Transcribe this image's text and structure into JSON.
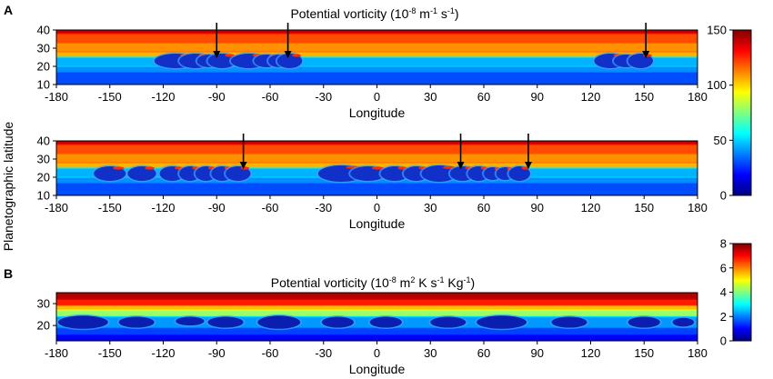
{
  "panel_a": {
    "letter": "A",
    "title_main": "Potential vorticity (10",
    "title_exp1": "-8",
    "title_mid": " m",
    "title_exp2": "-1",
    "title_mid2": " s",
    "title_exp3": "-1",
    "title_end": ")"
  },
  "panel_b": {
    "letter": "B",
    "title_main": "Potential vorticity (10",
    "title_exp1": "-8",
    "title_mid": " m",
    "title_exp2": "2",
    "title_mid2": " K s",
    "title_exp3": "-1",
    "title_end": " Kg",
    "title_exp4": "-1",
    "title_end2": ")"
  },
  "shared_ylabel": "Planetographic latitude",
  "chart_data": [
    {
      "type": "heatmap",
      "panel": "A (upper)",
      "title": "Potential vorticity (10^-8 m^-1 s^-1)",
      "xlabel": "Longitude",
      "ylabel": "Planetographic latitude",
      "xlim": [
        -180,
        180
      ],
      "ylim": [
        10,
        40
      ],
      "xticks": [
        -180,
        -150,
        -120,
        -90,
        -60,
        -30,
        0,
        30,
        60,
        90,
        120,
        150,
        180
      ],
      "yticks": [
        10,
        20,
        30,
        40
      ],
      "colorbar": {
        "min": 0,
        "max": 150,
        "ticks": [
          0,
          50,
          100,
          150
        ]
      },
      "background_bands": [
        {
          "lat_from": 10,
          "lat_to": 17,
          "value": 30
        },
        {
          "lat_from": 17,
          "lat_to": 20,
          "value": 40
        },
        {
          "lat_from": 20,
          "lat_to": 25,
          "value": 45
        },
        {
          "lat_from": 25,
          "lat_to": 28,
          "value": 105
        },
        {
          "lat_from": 28,
          "lat_to": 33,
          "value": 110
        },
        {
          "lat_from": 33,
          "lat_to": 38,
          "value": 120
        },
        {
          "lat_from": 38,
          "lat_to": 40,
          "value": 140
        }
      ],
      "vortices": [
        {
          "lon": -113,
          "lat": 23,
          "w": 12,
          "h": 4
        },
        {
          "lon": -102,
          "lat": 23,
          "w": 9,
          "h": 4
        },
        {
          "lon": -94,
          "lat": 23,
          "w": 7,
          "h": 3.5
        },
        {
          "lon": -87,
          "lat": 23,
          "w": 8,
          "h": 4
        },
        {
          "lon": -72,
          "lat": 23,
          "w": 10,
          "h": 4
        },
        {
          "lon": -62,
          "lat": 23,
          "w": 7,
          "h": 3.5
        },
        {
          "lon": -55,
          "lat": 23,
          "w": 6,
          "h": 3.5
        },
        {
          "lon": -49,
          "lat": 23,
          "w": 7,
          "h": 4
        },
        {
          "lon": 131,
          "lat": 23,
          "w": 9,
          "h": 4
        },
        {
          "lon": 140,
          "lat": 23,
          "w": 7,
          "h": 3.5
        },
        {
          "lon": 148,
          "lat": 23,
          "w": 7,
          "h": 4
        }
      ],
      "arrows_lon": [
        -90,
        -50,
        151
      ]
    },
    {
      "type": "heatmap",
      "panel": "A (lower)",
      "xlabel": "Longitude",
      "ylabel": "Planetographic latitude",
      "xlim": [
        -180,
        180
      ],
      "ylim": [
        10,
        40
      ],
      "xticks": [
        -180,
        -150,
        -120,
        -90,
        -60,
        -30,
        0,
        30,
        60,
        90,
        120,
        150,
        180
      ],
      "yticks": [
        10,
        20,
        30,
        40
      ],
      "colorbar": {
        "min": 0,
        "max": 150,
        "ticks": [
          0,
          50,
          100,
          150
        ]
      },
      "background_bands": [
        {
          "lat_from": 10,
          "lat_to": 17,
          "value": 30
        },
        {
          "lat_from": 17,
          "lat_to": 20,
          "value": 40
        },
        {
          "lat_from": 20,
          "lat_to": 25,
          "value": 45
        },
        {
          "lat_from": 25,
          "lat_to": 28,
          "value": 105
        },
        {
          "lat_from": 28,
          "lat_to": 33,
          "value": 110
        },
        {
          "lat_from": 33,
          "lat_to": 38,
          "value": 120
        },
        {
          "lat_from": 38,
          "lat_to": 40,
          "value": 140
        }
      ],
      "vortices": [
        {
          "lon": -150,
          "lat": 22,
          "w": 9,
          "h": 4
        },
        {
          "lon": -132,
          "lat": 22,
          "w": 8,
          "h": 4
        },
        {
          "lon": -115,
          "lat": 22,
          "w": 7,
          "h": 4
        },
        {
          "lon": -105,
          "lat": 22,
          "w": 6,
          "h": 4
        },
        {
          "lon": -96,
          "lat": 22,
          "w": 6,
          "h": 4
        },
        {
          "lon": -87,
          "lat": 22,
          "w": 6,
          "h": 4
        },
        {
          "lon": -78,
          "lat": 22,
          "w": 7,
          "h": 4
        },
        {
          "lon": -20,
          "lat": 22,
          "w": 13,
          "h": 4.5
        },
        {
          "lon": -5,
          "lat": 22,
          "w": 10,
          "h": 4
        },
        {
          "lon": 10,
          "lat": 22,
          "w": 8,
          "h": 4
        },
        {
          "lon": 22,
          "lat": 22,
          "w": 7,
          "h": 4
        },
        {
          "lon": 35,
          "lat": 22,
          "w": 10,
          "h": 4.5
        },
        {
          "lon": 48,
          "lat": 22,
          "w": 7,
          "h": 4
        },
        {
          "lon": 57,
          "lat": 22,
          "w": 6,
          "h": 4
        },
        {
          "lon": 65,
          "lat": 22,
          "w": 5,
          "h": 3.5
        },
        {
          "lon": 72,
          "lat": 22,
          "w": 5,
          "h": 3.5
        },
        {
          "lon": 80,
          "lat": 22,
          "w": 6,
          "h": 4
        }
      ],
      "arrows_lon": [
        -75,
        47,
        85
      ]
    },
    {
      "type": "heatmap",
      "panel": "B",
      "title": "Potential vorticity (10^-8 m^2 K s^-1 Kg^-1)",
      "xlabel": "Longitude",
      "ylabel": "Planetographic latitude",
      "xlim": [
        -180,
        180
      ],
      "ylim": [
        13,
        35
      ],
      "xticks": [
        -180,
        -150,
        -120,
        -90,
        -60,
        -30,
        0,
        30,
        60,
        90,
        120,
        150,
        180
      ],
      "yticks": [
        20,
        30
      ],
      "colorbar": {
        "min": 0,
        "max": 8,
        "ticks": [
          0,
          2,
          4,
          6,
          8
        ]
      },
      "background_bands": [
        {
          "lat_from": 13,
          "lat_to": 16,
          "value": 1.0
        },
        {
          "lat_from": 16,
          "lat_to": 19,
          "value": 1.5
        },
        {
          "lat_from": 19,
          "lat_to": 24,
          "value": 2.2
        },
        {
          "lat_from": 24,
          "lat_to": 27,
          "value": 4.2
        },
        {
          "lat_from": 27,
          "lat_to": 29,
          "value": 5.5
        },
        {
          "lat_from": 29,
          "lat_to": 32,
          "value": 6.8
        },
        {
          "lat_from": 32,
          "lat_to": 35,
          "value": 7.6
        }
      ],
      "vortices": [
        {
          "lon": -165,
          "lat": 21.5,
          "w": 14,
          "h": 3
        },
        {
          "lon": -135,
          "lat": 21.5,
          "w": 10,
          "h": 2.5
        },
        {
          "lon": -105,
          "lat": 22,
          "w": 8,
          "h": 2
        },
        {
          "lon": -85,
          "lat": 21.5,
          "w": 10,
          "h": 2.5
        },
        {
          "lon": -55,
          "lat": 21.5,
          "w": 12,
          "h": 3
        },
        {
          "lon": -22,
          "lat": 21.5,
          "w": 9,
          "h": 2.5
        },
        {
          "lon": 5,
          "lat": 21.5,
          "w": 9,
          "h": 2.5
        },
        {
          "lon": 40,
          "lat": 21.5,
          "w": 10,
          "h": 2.5
        },
        {
          "lon": 70,
          "lat": 21.5,
          "w": 14,
          "h": 3
        },
        {
          "lon": 108,
          "lat": 21.5,
          "w": 10,
          "h": 2.5
        },
        {
          "lon": 150,
          "lat": 21.5,
          "w": 9,
          "h": 2.5
        },
        {
          "lon": 172,
          "lat": 21.5,
          "w": 6,
          "h": 2
        }
      ]
    }
  ]
}
